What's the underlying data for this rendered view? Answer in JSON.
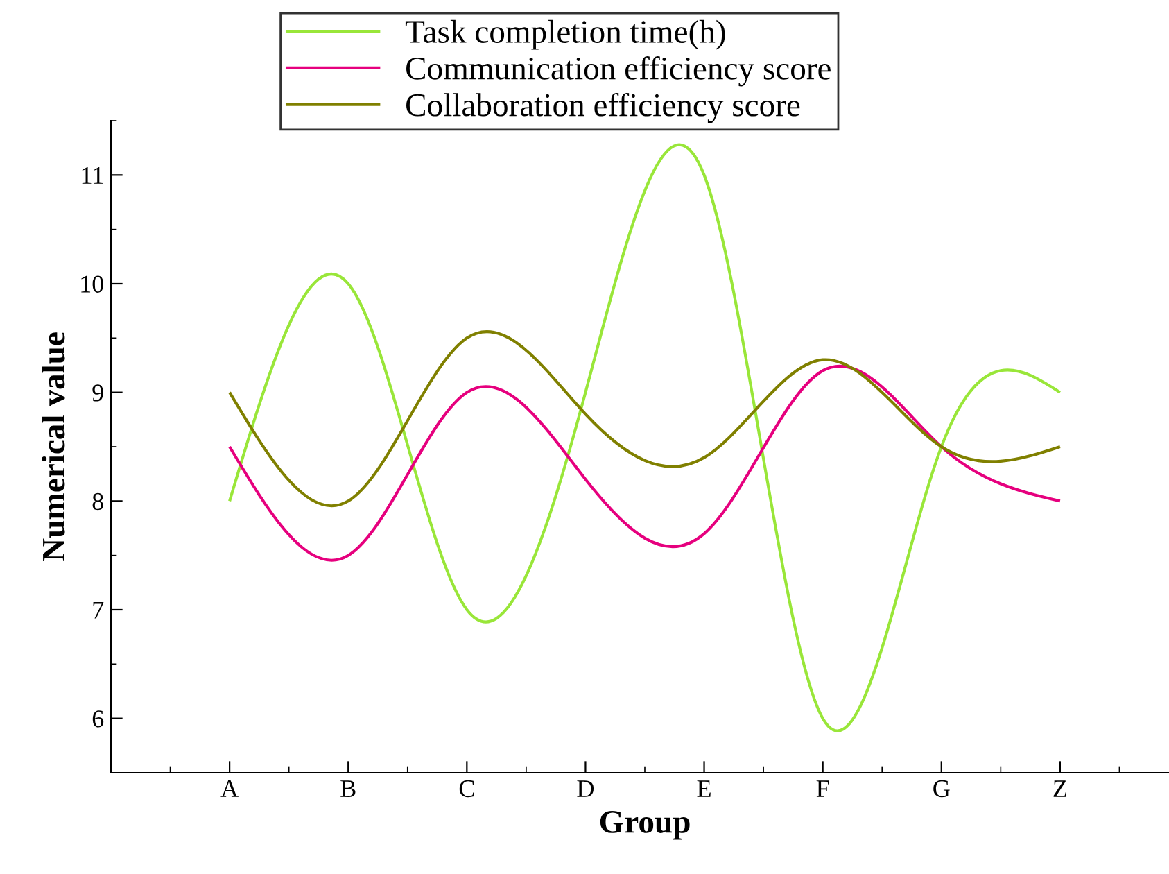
{
  "chart_data": {
    "type": "line",
    "xlabel": "Group",
    "ylabel": "Numerical value",
    "categories": [
      "A",
      "B",
      "C",
      "D",
      "E",
      "F",
      "G",
      "Z"
    ],
    "series": [
      {
        "name": "Task completion time(h)",
        "color": "#99e639",
        "values": [
          8,
          10,
          7,
          9,
          11,
          6,
          8.5,
          9
        ]
      },
      {
        "name": "Communication efficiency score",
        "color": "#e6007e",
        "values": [
          8.5,
          7.5,
          9,
          8.2,
          7.7,
          9.2,
          8.5,
          8
        ]
      },
      {
        "name": "Collaboration efficiency score",
        "color": "#808000",
        "values": [
          9,
          8,
          9.5,
          8.8,
          8.4,
          9.3,
          8.5,
          8.5
        ]
      }
    ],
    "ylim": [
      5.5,
      11.5
    ],
    "yticks": [
      6,
      7,
      8,
      9,
      10,
      11
    ],
    "grid": false,
    "legend": "top",
    "marker": "none",
    "line_style": "solid"
  }
}
